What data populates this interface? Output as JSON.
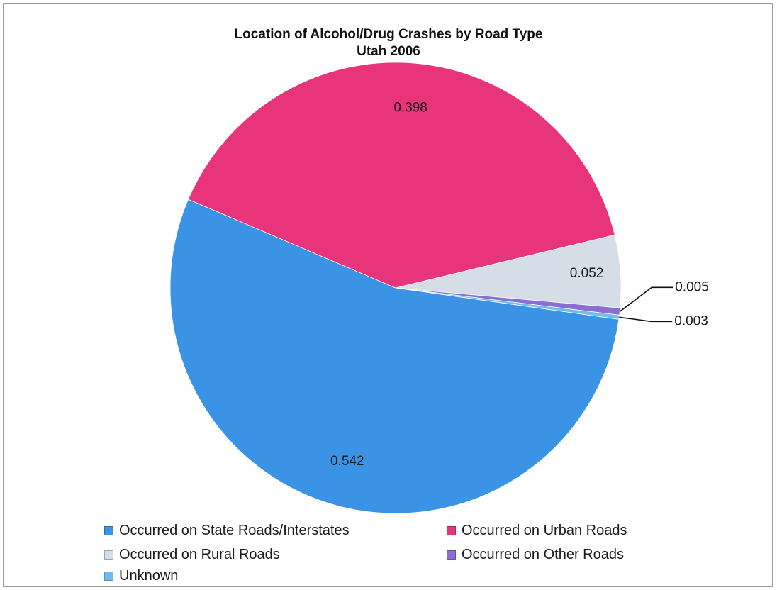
{
  "chart_data": {
    "type": "pie",
    "title": "Location of Alcohol/Drug Crashes by Road Type",
    "subtitle": "Utah 2006",
    "slices": [
      {
        "name": "Occurred on State Roads/Interstates",
        "value": 0.542,
        "label": "0.542",
        "color": "#3b93e6"
      },
      {
        "name": "Occurred on Urban Roads",
        "value": 0.398,
        "label": "0.398",
        "color": "#e8347a"
      },
      {
        "name": "Occurred on Rural Roads",
        "value": 0.052,
        "label": "0.052",
        "color": "#d5dde6"
      },
      {
        "name": "Occurred on Other Roads",
        "value": 0.005,
        "label": "0.005",
        "color": "#8a6fd0"
      },
      {
        "name": "Unknown",
        "value": 0.003,
        "label": "0.003",
        "color": "#6fbdf0"
      }
    ],
    "legend_position": "bottom"
  }
}
